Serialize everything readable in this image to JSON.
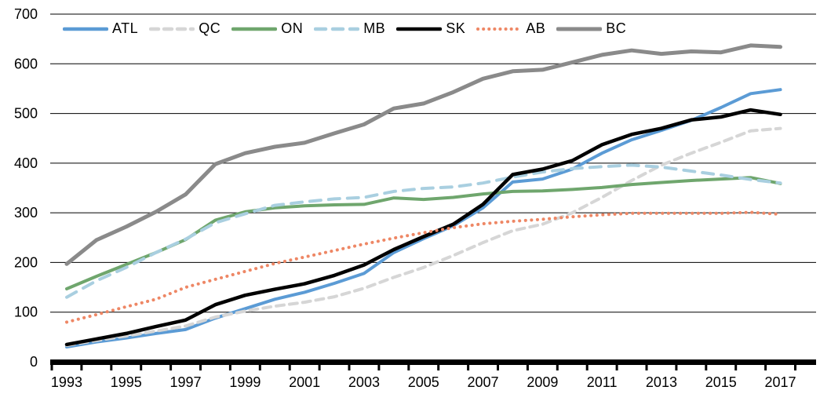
{
  "chart_data": {
    "type": "line",
    "title": "",
    "xlabel": "",
    "ylabel": "",
    "ylim": [
      0,
      700
    ],
    "ytick_interval": 100,
    "ytick_labels": [
      "0",
      "100",
      "200",
      "300",
      "400",
      "500",
      "600",
      "700"
    ],
    "x": [
      1993,
      1994,
      1995,
      1996,
      1997,
      1998,
      1999,
      2000,
      2001,
      2002,
      2003,
      2004,
      2005,
      2006,
      2007,
      2008,
      2009,
      2010,
      2011,
      2012,
      2013,
      2014,
      2015,
      2016,
      2017
    ],
    "xtick_labels": [
      "1993",
      "1995",
      "1997",
      "1999",
      "2001",
      "2003",
      "2005",
      "2007",
      "2009",
      "2011",
      "2013",
      "2015",
      "2017"
    ],
    "grid": "horizontal-black-thin",
    "legend_position": "top-inside",
    "series": [
      {
        "name": "ATL",
        "color": "#5B9BD5",
        "line_style": "solid",
        "values": [
          30,
          40,
          48,
          57,
          65,
          88,
          107,
          126,
          140,
          158,
          178,
          220,
          248,
          274,
          310,
          362,
          368,
          388,
          420,
          447,
          466,
          486,
          512,
          540,
          548
        ]
      },
      {
        "name": "QC",
        "color": "#D6D6D6",
        "line_style": "dashed",
        "values": [
          33,
          43,
          52,
          62,
          72,
          90,
          102,
          112,
          120,
          131,
          148,
          170,
          190,
          214,
          240,
          264,
          277,
          300,
          331,
          365,
          396,
          420,
          442,
          465,
          470
        ]
      },
      {
        "name": "ON",
        "color": "#6FA66D",
        "line_style": "solid",
        "values": [
          147,
          172,
          196,
          220,
          246,
          285,
          302,
          310,
          314,
          316,
          317,
          330,
          327,
          331,
          338,
          343,
          344,
          347,
          351,
          357,
          361,
          365,
          368,
          371,
          359
        ]
      },
      {
        "name": "MB",
        "color": "#A9CFE0",
        "line_style": "long-dash",
        "values": [
          130,
          163,
          190,
          220,
          247,
          280,
          298,
          315,
          322,
          328,
          331,
          343,
          349,
          352,
          360,
          372,
          382,
          389,
          393,
          396,
          392,
          384,
          376,
          367,
          360
        ]
      },
      {
        "name": "SK",
        "color": "#000000",
        "line_style": "solid",
        "values": [
          35,
          46,
          57,
          71,
          84,
          115,
          134,
          146,
          157,
          174,
          195,
          226,
          252,
          277,
          317,
          377,
          388,
          405,
          437,
          458,
          470,
          487,
          493,
          507,
          498
        ]
      },
      {
        "name": "AB",
        "color": "#EE8765",
        "line_style": "dotted",
        "values": [
          80,
          95,
          111,
          126,
          150,
          166,
          182,
          198,
          211,
          224,
          237,
          249,
          260,
          270,
          278,
          283,
          287,
          292,
          296,
          299,
          299,
          299,
          299,
          301,
          297
        ]
      },
      {
        "name": "BC",
        "color": "#8A8A8A",
        "line_style": "solid",
        "values": [
          197,
          245,
          272,
          302,
          337,
          398,
          420,
          433,
          441,
          460,
          478,
          510,
          520,
          543,
          570,
          585,
          588,
          603,
          618,
          627,
          620,
          625,
          623,
          637,
          634
        ]
      }
    ]
  },
  "axes_colors": {
    "grid": "#000000",
    "axis_bar": "#000000",
    "label": "#000000"
  }
}
